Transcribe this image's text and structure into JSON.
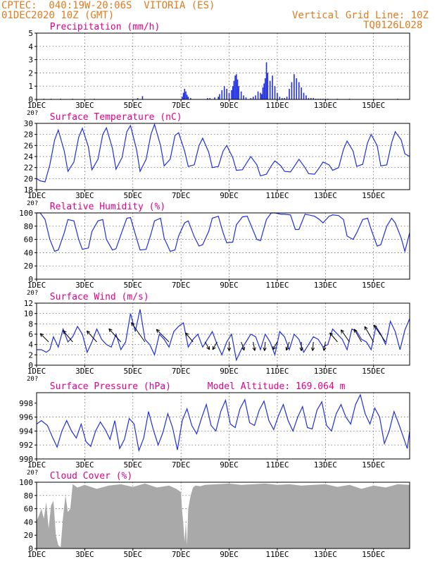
{
  "header": {
    "line1": "CPTEC:  040:19W-20:06S  VITORIA (ES)",
    "line2": "01DEC2020 10Z (GMT)",
    "right1": "Vertical Grid Line: 10Z",
    "right2": "TQ0126L028",
    "title_color": "#e07b1f"
  },
  "colors": {
    "line": "#2030e0",
    "bar": "#2030e0",
    "cloud": "#a9a9a9",
    "panel_title": "#e0008c",
    "axis": "#000000",
    "grid": "#555555",
    "wind_arrow": "#000000"
  },
  "x_axis": {
    "ticks": [
      "1DEC",
      "3DEC",
      "5DEC",
      "7DEC",
      "9DEC",
      "11DEC",
      "13DEC",
      "15DEC"
    ],
    "tick_days": [
      0,
      2,
      4,
      6,
      8,
      10,
      12,
      14
    ],
    "range_days": [
      0,
      15.5
    ],
    "clipped_label": "20?"
  },
  "chart_data": [
    {
      "type": "bar",
      "title": "Precipitation (mm/h)",
      "ylim": [
        0,
        5
      ],
      "yticks": [
        "0",
        "1",
        "2",
        "3",
        "4",
        "5"
      ],
      "x": [
        0.3,
        0.6,
        1.0,
        1.5,
        2.4,
        4.2,
        4.4,
        6.05,
        6.1,
        6.15,
        6.2,
        6.25,
        6.3,
        6.4,
        7.1,
        7.2,
        7.4,
        7.55,
        7.6,
        7.7,
        7.8,
        7.9,
        8.0,
        8.1,
        8.15,
        8.2,
        8.25,
        8.3,
        8.35,
        8.4,
        8.5,
        8.6,
        8.7,
        8.9,
        9.0,
        9.1,
        9.2,
        9.3,
        9.35,
        9.4,
        9.45,
        9.5,
        9.55,
        9.6,
        9.7,
        9.8,
        9.9,
        10.0,
        10.1,
        10.2,
        10.3,
        10.4,
        10.5,
        10.6,
        10.7,
        10.8,
        10.9,
        11.0,
        11.1,
        11.2,
        11.3,
        11.4,
        11.5,
        11.6,
        11.7,
        11.8,
        11.9,
        12.0,
        12.1,
        12.5,
        13.0,
        14.0,
        15.0
      ],
      "values": [
        0.05,
        0.05,
        0.05,
        0.05,
        0.05,
        0.1,
        0.25,
        0.2,
        0.5,
        0.8,
        0.6,
        0.35,
        0.2,
        0.1,
        0.1,
        0.1,
        0.15,
        0.2,
        0.4,
        0.7,
        1.0,
        0.8,
        0.5,
        0.7,
        1.0,
        1.4,
        1.8,
        1.9,
        1.5,
        1.0,
        0.6,
        0.3,
        0.15,
        0.1,
        0.2,
        0.3,
        0.6,
        0.5,
        0.4,
        0.9,
        1.2,
        1.6,
        2.8,
        2.0,
        1.4,
        1.8,
        1.0,
        0.5,
        0.2,
        0.1,
        0.1,
        0.2,
        0.8,
        1.3,
        1.9,
        1.6,
        1.3,
        0.9,
        0.5,
        0.3,
        0.1,
        0.1,
        0.1,
        0.05,
        0.05,
        0.05,
        0.05,
        0.05,
        0.05,
        0.05,
        0.05,
        0.05,
        0.05
      ]
    },
    {
      "type": "line",
      "title": "Surface Temperature (nC)",
      "ylim": [
        18,
        30
      ],
      "yticks": [
        "18",
        "20",
        "22",
        "24",
        "26",
        "28",
        "30"
      ],
      "x": [
        0,
        0.15,
        0.35,
        0.55,
        0.75,
        0.9,
        1.15,
        1.3,
        1.55,
        1.75,
        1.9,
        2.15,
        2.3,
        2.55,
        2.75,
        2.9,
        3.15,
        3.3,
        3.55,
        3.75,
        3.9,
        4.15,
        4.3,
        4.55,
        4.75,
        4.9,
        5.15,
        5.3,
        5.55,
        5.75,
        5.9,
        6.15,
        6.3,
        6.55,
        6.75,
        6.9,
        7.15,
        7.3,
        7.55,
        7.75,
        7.9,
        8.15,
        8.3,
        8.55,
        8.75,
        8.9,
        9.15,
        9.3,
        9.55,
        9.75,
        9.9,
        10.15,
        10.3,
        10.55,
        10.75,
        10.9,
        11.15,
        11.3,
        11.55,
        11.75,
        11.9,
        12.15,
        12.3,
        12.55,
        12.75,
        12.9,
        13.15,
        13.3,
        13.55,
        13.75,
        13.9,
        14.15,
        14.3,
        14.55,
        14.75,
        14.9,
        15.15,
        15.3,
        15.5
      ],
      "values": [
        20,
        19.6,
        19.4,
        22.5,
        27,
        28.8,
        25,
        21.3,
        23,
        27.5,
        29.1,
        25.8,
        21.6,
        23.5,
        28,
        29.2,
        25.5,
        21.7,
        23.8,
        28.5,
        29.6,
        25.3,
        21.3,
        23.5,
        28,
        29.8,
        26,
        22.3,
        23.5,
        27.8,
        28.3,
        25,
        22.2,
        22.5,
        26,
        27.3,
        24.8,
        22,
        22.2,
        25,
        26,
        23.8,
        21.5,
        21.6,
        23,
        24,
        22.5,
        20.5,
        20.8,
        22.3,
        23.2,
        22.3,
        21.3,
        21.2,
        22.5,
        23.5,
        22,
        20.9,
        20.8,
        22,
        23,
        22.5,
        21.5,
        22,
        25.3,
        26.8,
        25,
        22.2,
        22.6,
        26.5,
        28,
        26,
        22.3,
        22.5,
        26.5,
        28.5,
        27,
        24.5,
        24
      ]
    },
    {
      "type": "line",
      "title": "Relative Humidity (%)",
      "ylim": [
        0,
        100
      ],
      "yticks": [
        "0",
        "20",
        "40",
        "60",
        "80",
        "100"
      ],
      "x": [
        0,
        0.15,
        0.35,
        0.55,
        0.75,
        0.9,
        1.15,
        1.3,
        1.55,
        1.75,
        1.9,
        2.15,
        2.3,
        2.55,
        2.75,
        2.9,
        3.15,
        3.3,
        3.55,
        3.75,
        3.9,
        4.15,
        4.3,
        4.55,
        4.75,
        4.9,
        5.15,
        5.3,
        5.55,
        5.75,
        5.9,
        6.15,
        6.3,
        6.55,
        6.75,
        6.9,
        7.15,
        7.3,
        7.55,
        7.75,
        7.9,
        8.15,
        8.3,
        8.55,
        8.75,
        8.9,
        9.15,
        9.3,
        9.55,
        9.75,
        9.9,
        10.15,
        10.3,
        10.55,
        10.75,
        10.9,
        11.15,
        11.3,
        11.55,
        11.75,
        11.9,
        12.15,
        12.3,
        12.55,
        12.75,
        12.9,
        13.15,
        13.3,
        13.55,
        13.75,
        13.9,
        14.15,
        14.3,
        14.55,
        14.75,
        14.9,
        15.15,
        15.3,
        15.5
      ],
      "values": [
        100,
        100,
        90,
        60,
        42,
        44,
        70,
        90,
        88,
        60,
        45,
        47,
        72,
        88,
        90,
        60,
        44,
        46,
        72,
        92,
        93,
        62,
        44,
        45,
        68,
        88,
        92,
        62,
        42,
        44,
        65,
        85,
        88,
        64,
        50,
        52,
        72,
        92,
        95,
        70,
        55,
        56,
        82,
        94,
        95,
        82,
        60,
        58,
        90,
        100,
        100,
        98,
        98,
        97,
        75,
        75,
        98,
        97,
        95,
        90,
        85,
        95,
        97,
        96,
        90,
        65,
        60,
        70,
        90,
        92,
        75,
        50,
        52,
        80,
        92,
        85,
        62,
        42,
        70
      ]
    },
    {
      "type": "line",
      "title": "Surface Wind (m/s)",
      "ylim": [
        0,
        12
      ],
      "yticks": [
        "0",
        "2",
        "4",
        "6",
        "8",
        "10",
        "12"
      ],
      "x": [
        0,
        0.2,
        0.4,
        0.55,
        0.7,
        0.9,
        1.1,
        1.3,
        1.5,
        1.7,
        1.9,
        2.1,
        2.3,
        2.5,
        2.7,
        2.9,
        3.1,
        3.3,
        3.5,
        3.7,
        3.9,
        4.1,
        4.3,
        4.5,
        4.7,
        4.9,
        5.1,
        5.3,
        5.5,
        5.7,
        5.9,
        6.1,
        6.3,
        6.5,
        6.7,
        6.9,
        7.1,
        7.3,
        7.5,
        7.7,
        7.9,
        8.1,
        8.3,
        8.5,
        8.7,
        8.9,
        9.1,
        9.3,
        9.5,
        9.7,
        9.9,
        10.1,
        10.3,
        10.5,
        10.7,
        10.9,
        11.1,
        11.3,
        11.5,
        11.7,
        11.9,
        12.1,
        12.3,
        12.5,
        12.7,
        12.9,
        13.1,
        13.3,
        13.5,
        13.7,
        13.9,
        14.1,
        14.3,
        14.5,
        14.7,
        14.9,
        15.1,
        15.3,
        15.5
      ],
      "values": [
        3,
        3,
        2.5,
        3,
        5.5,
        3.5,
        7,
        4.5,
        5.5,
        7.5,
        6,
        2.5,
        4.5,
        7,
        5,
        4,
        3.5,
        6,
        3,
        4.5,
        10,
        6.5,
        10.8,
        5,
        4,
        2,
        6,
        5,
        3.5,
        6.5,
        7.5,
        8.2,
        3.5,
        5,
        6,
        3.5,
        5,
        6.5,
        4,
        2,
        4.5,
        6,
        1,
        3,
        4.5,
        6,
        5.5,
        3,
        6,
        4.5,
        2,
        6.5,
        5.5,
        3,
        6,
        5,
        2.5,
        4,
        5.5,
        5,
        3.5,
        4,
        7,
        6,
        5,
        3,
        7,
        6.5,
        5,
        4.5,
        3,
        7.5,
        6,
        4,
        8.5,
        6.5,
        3,
        6.8,
        9
      ],
      "arrows": [
        {
          "x": 0.5,
          "speed": 4,
          "dir_deg": 225
        },
        {
          "x": 1.5,
          "speed": 5,
          "dir_deg": 230
        },
        {
          "x": 2.5,
          "speed": 5,
          "dir_deg": 228
        },
        {
          "x": 3.5,
          "speed": 6,
          "dir_deg": 228
        },
        {
          "x": 4.5,
          "speed": 8,
          "dir_deg": 235
        },
        {
          "x": 5.5,
          "speed": 6,
          "dir_deg": 225
        },
        {
          "x": 6.5,
          "speed": 4,
          "dir_deg": 230
        },
        {
          "x": 7.0,
          "speed": 3,
          "dir_deg": 60
        },
        {
          "x": 7.5,
          "speed": 3,
          "dir_deg": 120
        },
        {
          "x": 8.0,
          "speed": 3,
          "dir_deg": 90
        },
        {
          "x": 8.5,
          "speed": 3,
          "dir_deg": 70
        },
        {
          "x": 9.0,
          "speed": 3,
          "dir_deg": 80
        },
        {
          "x": 9.5,
          "speed": 3,
          "dir_deg": 95
        },
        {
          "x": 10.0,
          "speed": 3,
          "dir_deg": 120
        },
        {
          "x": 10.5,
          "speed": 3,
          "dir_deg": 110
        },
        {
          "x": 11.0,
          "speed": 3,
          "dir_deg": 90
        },
        {
          "x": 11.5,
          "speed": 3,
          "dir_deg": 95
        },
        {
          "x": 12.0,
          "speed": 3,
          "dir_deg": 100
        },
        {
          "x": 12.5,
          "speed": 4,
          "dir_deg": 230
        },
        {
          "x": 13.0,
          "speed": 5,
          "dir_deg": 235
        },
        {
          "x": 13.5,
          "speed": 5,
          "dir_deg": 240
        },
        {
          "x": 14.0,
          "speed": 6,
          "dir_deg": 240
        },
        {
          "x": 14.5,
          "speed": 7,
          "dir_deg": 235
        }
      ]
    },
    {
      "type": "line",
      "title": "Surface Pressure (hPa)",
      "subtitle": "Model Altitude: 169.064  m",
      "ylim": [
        990,
        999.5
      ],
      "yticks": [
        "990",
        "992",
        "994",
        "996",
        "998"
      ],
      "x": [
        0,
        0.2,
        0.45,
        0.65,
        0.85,
        1.05,
        1.25,
        1.45,
        1.65,
        1.85,
        2.05,
        2.25,
        2.45,
        2.65,
        2.85,
        3.05,
        3.25,
        3.45,
        3.65,
        3.85,
        4.05,
        4.25,
        4.45,
        4.65,
        4.85,
        5.05,
        5.25,
        5.45,
        5.65,
        5.85,
        6.05,
        6.25,
        6.45,
        6.65,
        6.85,
        7.05,
        7.25,
        7.45,
        7.65,
        7.85,
        8.05,
        8.25,
        8.45,
        8.65,
        8.85,
        9.05,
        9.25,
        9.45,
        9.65,
        9.85,
        10.05,
        10.25,
        10.45,
        10.65,
        10.85,
        11.05,
        11.25,
        11.45,
        11.65,
        11.85,
        12.05,
        12.25,
        12.45,
        12.65,
        12.85,
        13.05,
        13.25,
        13.45,
        13.65,
        13.85,
        14.05,
        14.25,
        14.45,
        14.65,
        14.85,
        15.05,
        15.25,
        15.4,
        15.5
      ],
      "values": [
        995,
        995.5,
        994.8,
        993.2,
        991.7,
        994,
        995.5,
        994,
        993,
        995,
        992.5,
        991.8,
        994,
        995.3,
        994.2,
        992.8,
        995.5,
        991.5,
        992.8,
        995.8,
        995,
        991.2,
        993,
        996.8,
        994.2,
        992,
        993.8,
        996.5,
        994.5,
        991.3,
        995.5,
        997.2,
        994.8,
        993.6,
        995.8,
        997.8,
        994.8,
        994,
        996.8,
        998.4,
        995,
        994.5,
        997.2,
        998.5,
        995.2,
        994.8,
        997,
        998.3,
        995.5,
        994.2,
        996.2,
        997.8,
        995.5,
        994,
        996,
        997.5,
        994.5,
        994.3,
        997,
        998.2,
        994.8,
        994,
        996.5,
        997.8,
        996,
        995,
        997.8,
        999.2,
        996.5,
        995,
        997.3,
        996,
        992.2,
        994,
        996.8,
        995,
        993,
        991.5,
        994
      ]
    },
    {
      "type": "area",
      "title": "Cloud Cover (%)",
      "ylim": [
        0,
        100
      ],
      "yticks": [
        "0",
        "20",
        "40",
        "60",
        "80",
        "100"
      ],
      "x": [
        0,
        0.1,
        0.2,
        0.3,
        0.4,
        0.5,
        0.6,
        0.7,
        0.8,
        0.9,
        1.0,
        1.1,
        1.2,
        1.3,
        1.4,
        1.5,
        1.7,
        2.0,
        2.5,
        3.0,
        3.5,
        4.0,
        4.5,
        5.0,
        5.5,
        5.8,
        6.0,
        6.05,
        6.1,
        6.15,
        6.2,
        6.25,
        6.3,
        6.4,
        6.5,
        6.6,
        6.8,
        7.0,
        7.5,
        8.0,
        8.5,
        9.0,
        9.5,
        10.0,
        10.5,
        11.0,
        11.5,
        12.0,
        12.5,
        13.0,
        13.5,
        14.0,
        14.5,
        15.0,
        15.5
      ],
      "values": [
        42,
        50,
        60,
        45,
        70,
        30,
        65,
        72,
        20,
        5,
        2,
        48,
        80,
        55,
        60,
        97,
        92,
        96,
        90,
        95,
        97,
        93,
        98,
        92,
        95,
        90,
        85,
        55,
        35,
        10,
        40,
        5,
        60,
        80,
        92,
        95,
        94,
        96,
        97,
        98,
        96,
        97,
        98,
        96,
        97,
        95,
        96,
        97,
        93,
        96,
        90,
        95,
        92,
        97,
        96
      ]
    }
  ]
}
